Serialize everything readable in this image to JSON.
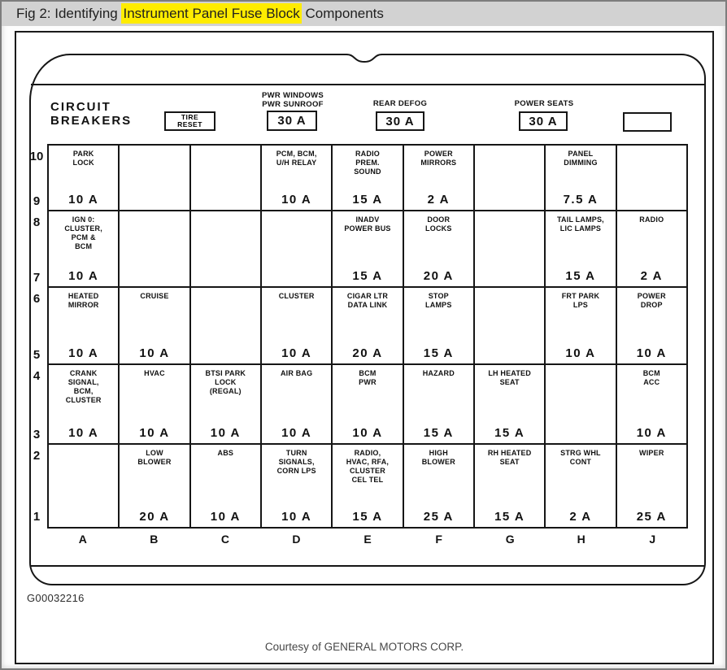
{
  "title_bar": {
    "prefix": "Fig 2: Identifying ",
    "highlight": "Instrument Panel Fuse Block",
    "suffix": " Components",
    "highlight_color": "#ffec00",
    "bar_color": "#d2d2d2"
  },
  "header": {
    "circuit_breakers_label": "CIRCUIT\nBREAKERS",
    "tire_reset_label": "TIRE\nRESET",
    "breakers": [
      {
        "label": "PWR WINDOWS\nPWR SUNROOF",
        "amps": "30 A"
      },
      {
        "label": "REAR DEFOG",
        "amps": "30 A"
      },
      {
        "label": "POWER SEATS",
        "amps": "30 A"
      }
    ],
    "spare_box_label": ""
  },
  "grid": {
    "column_letters": [
      "A",
      "B",
      "C",
      "D",
      "E",
      "F",
      "G",
      "H",
      "J"
    ],
    "rows": [
      {
        "top_number": "10",
        "bottom_number": "9",
        "cells": [
          {
            "label": "PARK\nLOCK",
            "amps": "10 A"
          },
          {
            "label": "",
            "amps": ""
          },
          {
            "label": "",
            "amps": ""
          },
          {
            "label": "PCM, BCM,\nU/H RELAY",
            "amps": "10 A"
          },
          {
            "label": "RADIO\nPREM.\nSOUND",
            "amps": "15 A"
          },
          {
            "label": "POWER\nMIRRORS",
            "amps": "2 A"
          },
          {
            "label": "",
            "amps": ""
          },
          {
            "label": "PANEL\nDIMMING",
            "amps": "7.5 A"
          },
          {
            "label": "",
            "amps": ""
          }
        ]
      },
      {
        "top_number": "8",
        "bottom_number": "7",
        "cells": [
          {
            "label": "IGN 0:\nCLUSTER,\nPCM &\nBCM",
            "amps": "10 A"
          },
          {
            "label": "",
            "amps": ""
          },
          {
            "label": "",
            "amps": ""
          },
          {
            "label": "",
            "amps": ""
          },
          {
            "label": "INADV\nPOWER BUS",
            "amps": "15 A"
          },
          {
            "label": "DOOR\nLOCKS",
            "amps": "20 A"
          },
          {
            "label": "",
            "amps": ""
          },
          {
            "label": "TAIL LAMPS,\nLIC LAMPS",
            "amps": "15 A"
          },
          {
            "label": "RADIO",
            "amps": "2 A"
          }
        ]
      },
      {
        "top_number": "6",
        "bottom_number": "5",
        "cells": [
          {
            "label": "HEATED\nMIRROR",
            "amps": "10 A"
          },
          {
            "label": "CRUISE",
            "amps": "10 A"
          },
          {
            "label": "",
            "amps": ""
          },
          {
            "label": "CLUSTER",
            "amps": "10 A"
          },
          {
            "label": "CIGAR LTR\nDATA LINK",
            "amps": "20 A"
          },
          {
            "label": "STOP\nLAMPS",
            "amps": "15 A"
          },
          {
            "label": "",
            "amps": ""
          },
          {
            "label": "FRT PARK\nLPS",
            "amps": "10 A"
          },
          {
            "label": "POWER\nDROP",
            "amps": "10 A"
          }
        ]
      },
      {
        "top_number": "4",
        "bottom_number": "3",
        "cells": [
          {
            "label": "CRANK\nSIGNAL,\nBCM,\nCLUSTER",
            "amps": "10 A"
          },
          {
            "label": "HVAC",
            "amps": "10 A"
          },
          {
            "label": "BTSI PARK\nLOCK\n(REGAL)",
            "amps": "10 A"
          },
          {
            "label": "AIR BAG",
            "amps": "10 A"
          },
          {
            "label": "BCM\nPWR",
            "amps": "10 A"
          },
          {
            "label": "HAZARD",
            "amps": "15 A"
          },
          {
            "label": "LH HEATED\nSEAT",
            "amps": "15 A"
          },
          {
            "label": "",
            "amps": ""
          },
          {
            "label": "BCM\nACC",
            "amps": "10 A"
          }
        ]
      },
      {
        "top_number": "2",
        "bottom_number": "1",
        "cells": [
          {
            "label": "",
            "amps": ""
          },
          {
            "label": "LOW\nBLOWER",
            "amps": "20 A"
          },
          {
            "label": "ABS",
            "amps": "10 A"
          },
          {
            "label": "TURN\nSIGNALS,\nCORN LPS",
            "amps": "10 A"
          },
          {
            "label": "RADIO,\nHVAC, RFA,\nCLUSTER\nCEL TEL",
            "amps": "15 A"
          },
          {
            "label": "HIGH\nBLOWER",
            "amps": "25 A"
          },
          {
            "label": "RH HEATED\nSEAT",
            "amps": "15 A"
          },
          {
            "label": "STRG WHL\nCONT",
            "amps": "2 A"
          },
          {
            "label": "WIPER",
            "amps": "25 A"
          }
        ]
      }
    ]
  },
  "footer": {
    "figure_id": "G00032216",
    "courtesy": "Courtesy of GENERAL MOTORS CORP."
  }
}
